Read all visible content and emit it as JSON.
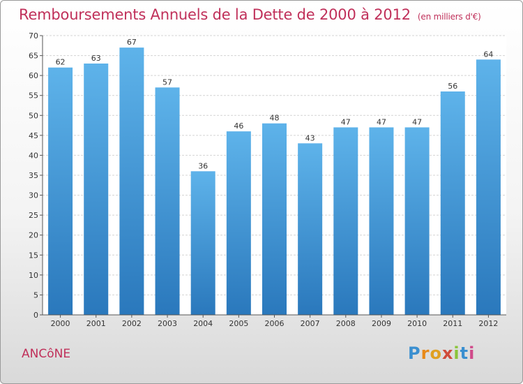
{
  "header": {
    "title": "Remboursements Annuels de la Dette de 2000 à 2012",
    "subtitle": "(en milliers d'€)"
  },
  "footer": {
    "commune": "ANCôNE",
    "logo_letters": [
      "P",
      "r",
      "o",
      "x",
      "i",
      "t",
      "i"
    ],
    "logo_colors": [
      "#3a8fd0",
      "#e88a1a",
      "#e0a020",
      "#d04a3a",
      "#8bc43a",
      "#3a8fd0",
      "#d04a8a"
    ]
  },
  "colors": {
    "bar_top": "#5eb3ea",
    "bar_bottom": "#2a78bc",
    "title": "#c0305a"
  },
  "chart_data": {
    "type": "bar",
    "title": "Remboursements Annuels de la Dette de 2000 à 2012",
    "subtitle": "(en milliers d'€)",
    "categories": [
      "2000",
      "2001",
      "2002",
      "2003",
      "2004",
      "2005",
      "2006",
      "2007",
      "2008",
      "2009",
      "2010",
      "2011",
      "2012"
    ],
    "values": [
      62,
      63,
      67,
      57,
      36,
      46,
      48,
      43,
      47,
      47,
      47,
      56,
      64
    ],
    "ylim": [
      0,
      70
    ],
    "yticks": [
      0,
      5,
      10,
      15,
      20,
      25,
      30,
      35,
      40,
      45,
      50,
      55,
      60,
      65,
      70
    ],
    "grid": true,
    "legend": "none"
  }
}
